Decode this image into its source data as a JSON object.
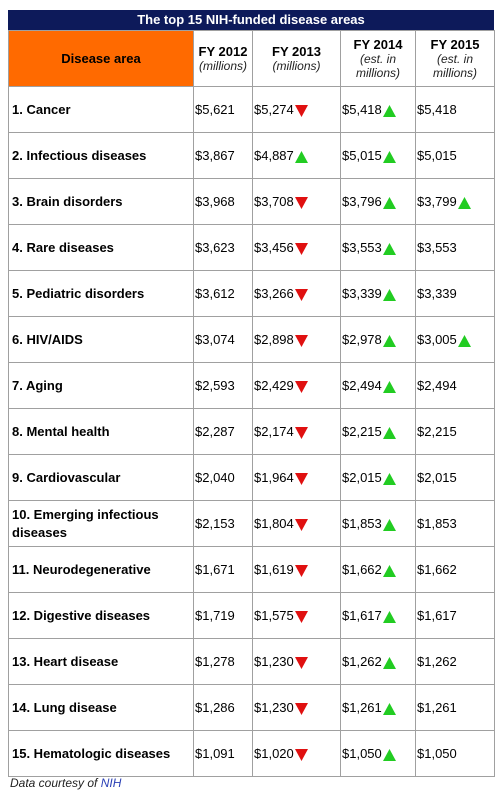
{
  "header": {
    "title": "The top 15 NIH-funded disease areas",
    "columns": [
      {
        "title": "Disease area"
      },
      {
        "title": "FY 2012",
        "note": "(millions)"
      },
      {
        "title": "FY 2013",
        "note": "(millions)"
      },
      {
        "title": "FY 2014",
        "note": "(est. in millions)"
      },
      {
        "title": "FY 2015",
        "note": "(est. in millions)"
      }
    ]
  },
  "table": {
    "rows": [
      {
        "label": "1. Cancer",
        "values": [
          "$5,621",
          "$5,274",
          "$5,418",
          "$5,418"
        ],
        "arrows": [
          null,
          "down",
          "up",
          null
        ]
      },
      {
        "label": "2. Infectious diseases",
        "values": [
          "$3,867",
          "$4,887",
          "$5,015",
          "$5,015"
        ],
        "arrows": [
          null,
          "up",
          "up",
          null
        ]
      },
      {
        "label": "3. Brain disorders",
        "values": [
          "$3,968",
          "$3,708",
          "$3,796",
          "$3,799"
        ],
        "arrows": [
          null,
          "down",
          "up",
          "up"
        ]
      },
      {
        "label": "4. Rare diseases",
        "values": [
          "$3,623",
          "$3,456",
          "$3,553",
          "$3,553"
        ],
        "arrows": [
          null,
          "down",
          "up",
          null
        ]
      },
      {
        "label": "5. Pediatric disorders",
        "values": [
          "$3,612",
          "$3,266",
          "$3,339",
          "$3,339"
        ],
        "arrows": [
          null,
          "down",
          "up",
          null
        ]
      },
      {
        "label": "6. HIV/AIDS",
        "values": [
          "$3,074",
          "$2,898",
          "$2,978",
          "$3,005"
        ],
        "arrows": [
          null,
          "down",
          "up",
          "up"
        ]
      },
      {
        "label": "7. Aging",
        "values": [
          "$2,593",
          "$2,429",
          "$2,494",
          "$2,494"
        ],
        "arrows": [
          null,
          "down",
          "up",
          null
        ]
      },
      {
        "label": "8. Mental health",
        "values": [
          "$2,287",
          "$2,174",
          "$2,215",
          "$2,215"
        ],
        "arrows": [
          null,
          "down",
          "up",
          null
        ]
      },
      {
        "label": "9. Cardiovascular",
        "values": [
          "$2,040",
          "$1,964",
          "$2,015",
          "$2,015"
        ],
        "arrows": [
          null,
          "down",
          "up",
          null
        ]
      },
      {
        "label": "10. Emerging infectious diseases",
        "values": [
          "$2,153",
          "$1,804",
          "$1,853",
          "$1,853"
        ],
        "arrows": [
          null,
          "down",
          "up",
          null
        ]
      },
      {
        "label": "11. Neurodegenerative",
        "values": [
          "$1,671",
          "$1,619",
          "$1,662",
          "$1,662"
        ],
        "arrows": [
          null,
          "down",
          "up",
          null
        ]
      },
      {
        "label": "12. Digestive diseases",
        "values": [
          "$1,719",
          "$1,575",
          "$1,617",
          "$1,617"
        ],
        "arrows": [
          null,
          "down",
          "up",
          null
        ]
      },
      {
        "label": "13. Heart disease",
        "values": [
          "$1,278",
          "$1,230",
          "$1,262",
          "$1,262"
        ],
        "arrows": [
          null,
          "down",
          "up",
          null
        ]
      },
      {
        "label": "14. Lung disease",
        "values": [
          "$1,286",
          "$1,230",
          "$1,261",
          "$1,261"
        ],
        "arrows": [
          null,
          "down",
          "up",
          null
        ]
      },
      {
        "label": "15. Hematologic diseases",
        "values": [
          "$1,091",
          "$1,020",
          "$1,050",
          "$1,050"
        ],
        "arrows": [
          null,
          "down",
          "up",
          null
        ]
      }
    ]
  },
  "footer": {
    "text": "Data courtesy of",
    "link": "NIH"
  }
}
